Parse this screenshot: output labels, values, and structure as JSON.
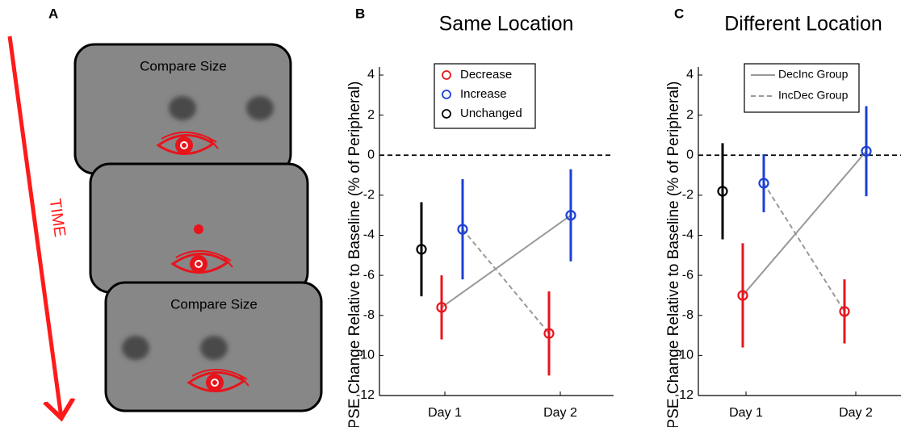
{
  "panel_a": {
    "label": "A",
    "time_label": "TIME",
    "screen_texts": [
      "Compare Size",
      "Compare Size"
    ]
  },
  "chart_data": [
    {
      "type": "errorbar",
      "panel": "B",
      "title": "Same Location",
      "ylabel": "PSE Change Relative to Baseline (% of Peripheral)",
      "categories": [
        "Day 1",
        "Day 2"
      ],
      "ylim": [
        -12,
        4
      ],
      "yticks": [
        -12,
        -10,
        -8,
        -6,
        -4,
        -2,
        0,
        2,
        4
      ],
      "hline": 0,
      "series": [
        {
          "name": "Decrease",
          "color": "#e8141c",
          "values": [
            -7.6,
            -8.9
          ],
          "errors": [
            1.6,
            2.1
          ]
        },
        {
          "name": "Increase",
          "color": "#1c3fd6",
          "values": [
            -3.7,
            -3.0
          ],
          "errors": [
            2.5,
            2.3
          ]
        },
        {
          "name": "Unchanged",
          "color": "#000000",
          "values": [
            -4.7,
            null
          ],
          "errors": [
            2.35,
            null
          ]
        }
      ],
      "group_lines": [
        {
          "color": "#999999",
          "dashed": false
        },
        {
          "color": "#999999",
          "dashed": true
        }
      ]
    },
    {
      "type": "errorbar",
      "panel": "C",
      "title": "Different Location",
      "ylabel": "PSE Change Relative to Baseline (% of Peripheral)",
      "categories": [
        "Day 1",
        "Day 2"
      ],
      "ylim": [
        -12,
        4
      ],
      "yticks": [
        -12,
        -10,
        -8,
        -6,
        -4,
        -2,
        0,
        2,
        4
      ],
      "hline": 0,
      "series": [
        {
          "color": "#e8141c",
          "values": [
            -7.0,
            -7.8
          ],
          "errors": [
            2.6,
            1.6
          ]
        },
        {
          "color": "#1c3fd6",
          "values": [
            -1.4,
            0.2
          ],
          "errors": [
            1.45,
            2.25
          ]
        },
        {
          "color": "#000000",
          "values": [
            -1.8,
            null
          ],
          "errors": [
            2.4,
            null
          ]
        }
      ],
      "group_lines": [
        {
          "name": "DecInc Group",
          "color": "#999999",
          "dashed": false
        },
        {
          "name": "IncDec Group",
          "color": "#999999",
          "dashed": true
        }
      ]
    }
  ]
}
